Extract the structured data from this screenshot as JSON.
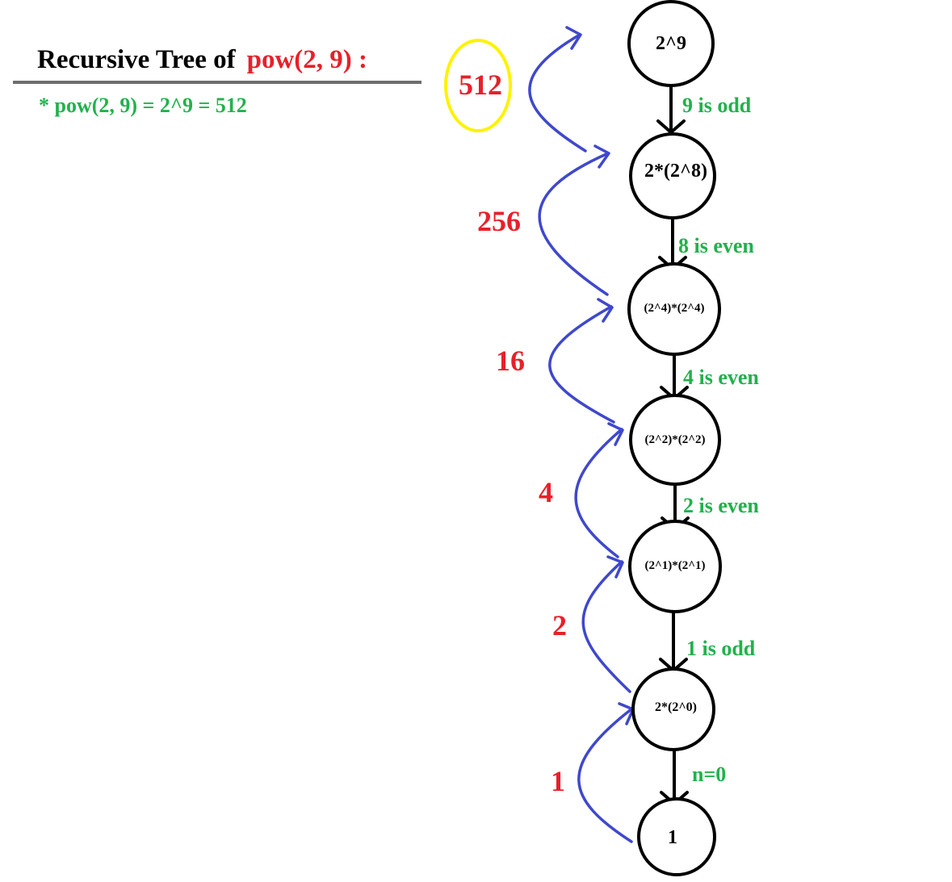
{
  "title": {
    "prefix": "Recursive Tree of",
    "call": "pow(2, 9) :"
  },
  "note": "* pow(2, 9) = 2^9 = 512",
  "colors": {
    "return_values": "#e8202a",
    "edge_labels": "#22b14c",
    "return_arrows": "#3f48cc",
    "result_highlight": "#fff200"
  },
  "nodes": [
    "2^9",
    "2*(2^8)",
    "(2^4)*(2^4)",
    "(2^2)*(2^2)",
    "(2^1)*(2^1)",
    "2*(2^0)",
    "1"
  ],
  "edge_labels": [
    "9 is odd",
    "8 is even",
    "4 is even",
    "2 is even",
    "1 is odd",
    "n=0"
  ],
  "return_values": [
    "512",
    "256",
    "16",
    "4",
    "2",
    "1"
  ]
}
